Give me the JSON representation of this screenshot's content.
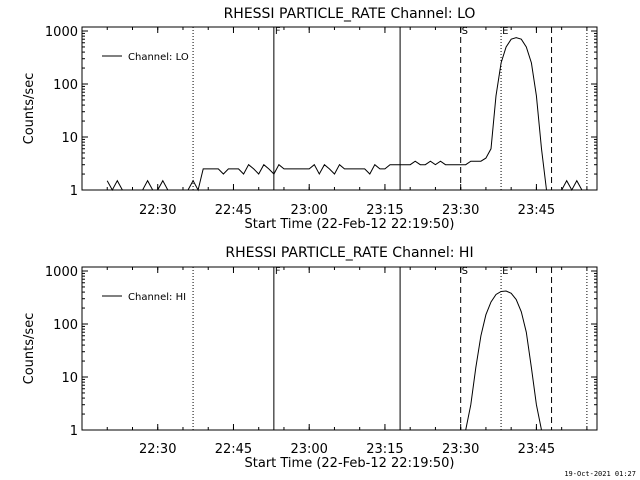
{
  "footer": {
    "timestamp": "19-Oct-2021 01:27"
  },
  "chart_data": [
    {
      "type": "line",
      "title": "RHESSI PARTICLE_RATE Channel: LO",
      "xlabel": "Start Time (22-Feb-12 22:19:50)",
      "ylabel": "Counts/sec",
      "yscale": "log",
      "ylim": [
        1,
        1000
      ],
      "y_ticks": [
        1,
        10,
        100,
        1000
      ],
      "y_tick_labels": [
        "1",
        "10",
        "100",
        "1000"
      ],
      "xlim_minutes": [
        22.25,
        23.95
      ],
      "x_ticks": [
        "22:30",
        "22:45",
        "23:00",
        "23:15",
        "23:30",
        "23:45"
      ],
      "grid": false,
      "legend": {
        "placement": "top-left",
        "entries": [
          "Channel: LO"
        ]
      },
      "series": [
        {
          "name": "Channel: LO",
          "x": [
            "22:20",
            "22:21",
            "22:22",
            "22:23",
            "22:24",
            "22:25",
            "22:26",
            "22:27",
            "22:28",
            "22:29",
            "22:30",
            "22:31",
            "22:32",
            "22:33",
            "22:34",
            "22:35",
            "22:36",
            "22:37",
            "22:38",
            "22:39",
            "22:40",
            "22:41",
            "22:42",
            "22:43",
            "22:44",
            "22:45",
            "22:46",
            "22:47",
            "22:48",
            "22:49",
            "22:50",
            "22:51",
            "22:52",
            "22:53",
            "22:54",
            "22:55",
            "22:56",
            "22:57",
            "22:58",
            "22:59",
            "23:00",
            "23:01",
            "23:02",
            "23:03",
            "23:04",
            "23:05",
            "23:06",
            "23:07",
            "23:08",
            "23:09",
            "23:10",
            "23:11",
            "23:12",
            "23:13",
            "23:14",
            "23:15",
            "23:16",
            "23:17",
            "23:18",
            "23:19",
            "23:20",
            "23:21",
            "23:22",
            "23:23",
            "23:24",
            "23:25",
            "23:26",
            "23:27",
            "23:28",
            "23:29",
            "23:30",
            "23:31",
            "23:32",
            "23:33",
            "23:34",
            "23:35",
            "23:36",
            "23:37",
            "23:38",
            "23:39",
            "23:40",
            "23:41",
            "23:42",
            "23:43",
            "23:44",
            "23:45",
            "23:46",
            "23:47",
            "23:48",
            "23:49",
            "23:50",
            "23:51",
            "23:52",
            "23:53",
            "23:54"
          ],
          "values": [
            1.5,
            1,
            1.5,
            1,
            1,
            1,
            1,
            1,
            1.5,
            1,
            1,
            1.5,
            1,
            1,
            1,
            1,
            1,
            1.5,
            1,
            2.5,
            2.5,
            2.5,
            2.5,
            2,
            2.5,
            2.5,
            2.5,
            2,
            3,
            2.5,
            2,
            3,
            2.5,
            2,
            3,
            2.5,
            2.5,
            2.5,
            2.5,
            2.5,
            2.5,
            3,
            2,
            3,
            2.5,
            2,
            3,
            2.5,
            2.5,
            2.5,
            2.5,
            2.5,
            2,
            3,
            2.5,
            2.5,
            3,
            3,
            3,
            3,
            3,
            3.5,
            3,
            3,
            3.5,
            3,
            3.5,
            3,
            3,
            3,
            3,
            3,
            3.5,
            3.5,
            3.5,
            4,
            6,
            60,
            250,
            500,
            700,
            750,
            700,
            500,
            250,
            60,
            6,
            1,
            1,
            1,
            1,
            1.5,
            1,
            1.5,
            1
          ]
        }
      ],
      "annotations": [
        {
          "label": "",
          "time": "22:37",
          "style": "dotted"
        },
        {
          "label": "F",
          "time": "22:53",
          "style": "solid"
        },
        {
          "label": "",
          "time": "23:18",
          "style": "solid"
        },
        {
          "label": "S",
          "time": "23:30",
          "style": "dashed"
        },
        {
          "label": "E",
          "time": "23:38",
          "style": "dotted"
        },
        {
          "label": "",
          "time": "23:48",
          "style": "dashed"
        },
        {
          "label": "",
          "time": "23:55",
          "style": "dotted"
        }
      ]
    },
    {
      "type": "line",
      "title": "RHESSI PARTICLE_RATE Channel: HI",
      "xlabel": "Start Time (22-Feb-12 22:19:50)",
      "ylabel": "Counts/sec",
      "yscale": "log",
      "ylim": [
        1,
        1000
      ],
      "y_ticks": [
        1,
        10,
        100,
        1000
      ],
      "y_tick_labels": [
        "1",
        "10",
        "100",
        "1000"
      ],
      "xlim_minutes": [
        22.25,
        23.95
      ],
      "x_ticks": [
        "22:30",
        "22:45",
        "23:00",
        "23:15",
        "23:30",
        "23:45"
      ],
      "grid": false,
      "legend": {
        "placement": "top-left",
        "entries": [
          "Channel: HI"
        ]
      },
      "series": [
        {
          "name": "Channel: HI",
          "x": [
            "23:31",
            "23:32",
            "23:33",
            "23:34",
            "23:35",
            "23:36",
            "23:37",
            "23:38",
            "23:39",
            "23:40",
            "23:41",
            "23:42",
            "23:43",
            "23:44",
            "23:45",
            "23:46"
          ],
          "values": [
            1,
            3,
            15,
            60,
            150,
            260,
            360,
            410,
            420,
            380,
            290,
            170,
            70,
            15,
            3,
            1
          ]
        }
      ],
      "annotations": [
        {
          "label": "",
          "time": "22:37",
          "style": "dotted"
        },
        {
          "label": "F",
          "time": "22:53",
          "style": "solid"
        },
        {
          "label": "",
          "time": "23:18",
          "style": "solid"
        },
        {
          "label": "S",
          "time": "23:30",
          "style": "dashed"
        },
        {
          "label": "E",
          "time": "23:38",
          "style": "dotted"
        },
        {
          "label": "",
          "time": "23:48",
          "style": "dashed"
        },
        {
          "label": "",
          "time": "23:55",
          "style": "dotted"
        }
      ]
    }
  ]
}
